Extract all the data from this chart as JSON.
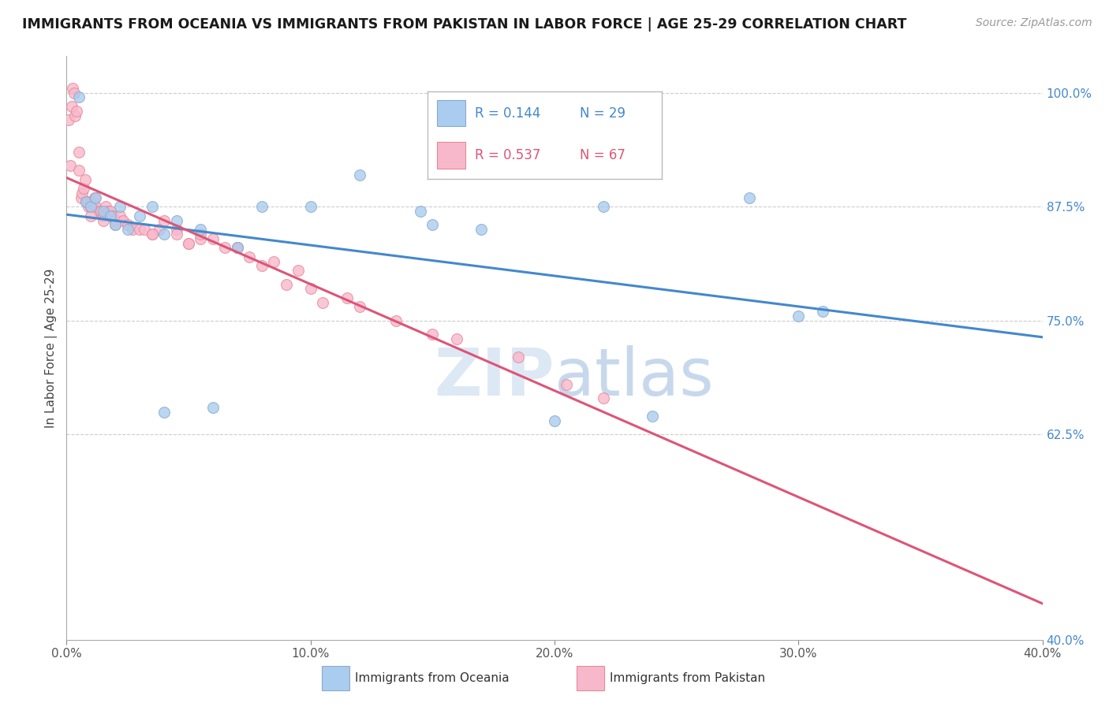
{
  "title": "IMMIGRANTS FROM OCEANIA VS IMMIGRANTS FROM PAKISTAN IN LABOR FORCE | AGE 25-29 CORRELATION CHART",
  "source": "Source: ZipAtlas.com",
  "xlabel_vals": [
    0.0,
    10.0,
    20.0,
    30.0,
    40.0
  ],
  "ylabel_vals": [
    62.5,
    75.0,
    87.5,
    100.0
  ],
  "ylabel_right_extra": 40.0,
  "xmin": 0.0,
  "xmax": 40.0,
  "ymin": 40.0,
  "ymax": 104.0,
  "legend_blue_R": "0.144",
  "legend_blue_N": "29",
  "legend_pink_R": "0.537",
  "legend_pink_N": "67",
  "blue_color": "#aaccee",
  "blue_edge": "#88aacc",
  "pink_color": "#f8b8cc",
  "pink_edge": "#e88898",
  "blue_line_color": "#4488cc",
  "pink_line_color": "#dd5577",
  "legend_color_blue": "#4488cc",
  "legend_color_pink": "#dd5577",
  "blue_x": [
    0.5,
    0.8,
    1.0,
    1.2,
    1.5,
    1.8,
    2.0,
    2.2,
    2.5,
    3.0,
    3.5,
    4.0,
    4.5,
    5.5,
    7.0,
    8.0,
    10.0,
    12.0,
    14.5,
    15.0,
    17.0,
    20.0,
    24.0,
    28.0,
    30.0,
    31.0,
    4.0,
    6.0,
    22.0
  ],
  "blue_y": [
    99.5,
    88.0,
    87.5,
    88.5,
    87.0,
    86.5,
    85.5,
    87.5,
    85.0,
    86.5,
    87.5,
    84.5,
    86.0,
    85.0,
    83.0,
    87.5,
    87.5,
    91.0,
    87.0,
    85.5,
    85.0,
    64.0,
    64.5,
    88.5,
    75.5,
    76.0,
    65.0,
    65.5,
    87.5
  ],
  "pink_x": [
    0.1,
    0.15,
    0.2,
    0.25,
    0.3,
    0.35,
    0.4,
    0.5,
    0.5,
    0.6,
    0.65,
    0.7,
    0.75,
    0.8,
    0.85,
    0.9,
    1.0,
    1.0,
    1.1,
    1.15,
    1.2,
    1.3,
    1.4,
    1.5,
    1.5,
    1.6,
    1.7,
    1.8,
    1.9,
    2.0,
    2.2,
    2.3,
    2.5,
    2.7,
    3.0,
    3.2,
    3.5,
    3.8,
    4.0,
    4.5,
    5.0,
    5.5,
    6.0,
    6.5,
    7.0,
    8.5,
    9.5,
    1.0,
    2.0,
    3.5,
    4.5,
    7.0,
    8.0,
    10.0,
    11.5,
    13.5,
    5.5,
    10.5,
    12.0,
    15.0,
    16.0,
    18.5,
    20.5,
    22.0,
    5.0,
    7.5,
    9.0
  ],
  "pink_y": [
    97.0,
    92.0,
    98.5,
    100.5,
    100.0,
    97.5,
    98.0,
    91.5,
    93.5,
    88.5,
    89.0,
    89.5,
    90.5,
    88.0,
    88.0,
    87.5,
    88.0,
    87.5,
    88.0,
    88.5,
    87.5,
    87.0,
    87.0,
    86.5,
    86.0,
    87.5,
    87.0,
    87.0,
    86.5,
    86.0,
    86.5,
    86.0,
    85.5,
    85.0,
    85.0,
    85.0,
    84.5,
    85.0,
    86.0,
    85.0,
    83.5,
    84.0,
    84.0,
    83.0,
    83.0,
    81.5,
    80.5,
    86.5,
    85.5,
    84.5,
    84.5,
    83.0,
    81.0,
    78.5,
    77.5,
    75.0,
    84.5,
    77.0,
    76.5,
    73.5,
    73.0,
    71.0,
    68.0,
    66.5,
    83.5,
    82.0,
    79.0
  ],
  "watermark_zip": "ZIP",
  "watermark_atlas": "atlas",
  "ylabel_label": "In Labor Force | Age 25-29",
  "marker_size": 100,
  "grid_color": "#cccccc"
}
